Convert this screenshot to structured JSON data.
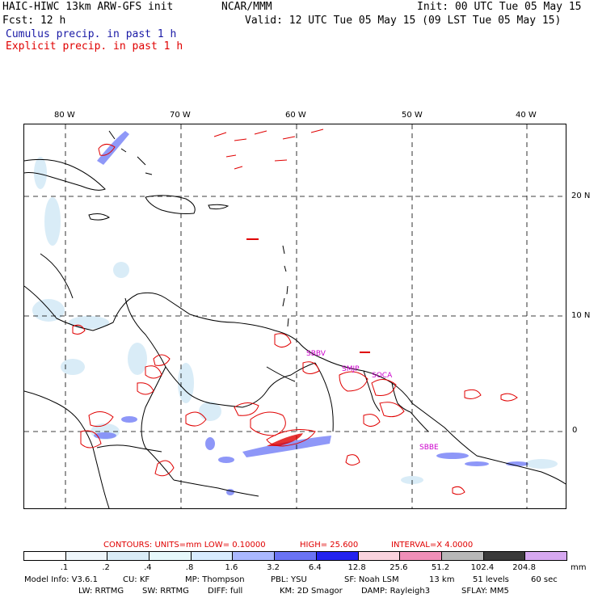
{
  "header": {
    "model": "HAIC-HIWC 13km ARW-GFS init",
    "org": "NCAR/MMM",
    "init": "Init: 00 UTC Tue 05 May 15",
    "fcst": "Fcst:   12 h",
    "valid": "Valid: 12 UTC Tue 05 May 15 (09 LST Tue 05 May 15)",
    "cumulus": "Cumulus precip. in past 1 h",
    "explicit": "Explicit precip. in past 1 h",
    "colors": {
      "cumulus": "#1a1aa6",
      "explicit": "#e00000"
    }
  },
  "map": {
    "lon_labels": [
      "80 W",
      "70 W",
      "60 W",
      "50 W",
      "40 W"
    ],
    "lat_labels": [
      "20 N",
      "10 N",
      "0"
    ],
    "stations": [
      "SBBV",
      "SMJP",
      "SOCA",
      "SBBE"
    ]
  },
  "contours": {
    "label": "CONTOURS:  UNITS=mm  LOW= 0.10000",
    "high": "HIGH=  25.600",
    "interval": "INTERVAL=X  4.0000"
  },
  "colorbar": {
    "labels": [
      ".1",
      ".2",
      ".4",
      ".8",
      "1.6",
      "3.2",
      "6.4",
      "12.8",
      "25.6",
      "51.2",
      "102.4",
      "204.8"
    ],
    "unit": "mm",
    "colors": [
      "#ffffff",
      "#eef6fb",
      "#d9ecf7",
      "#e6f8fb",
      "#d8ecff",
      "#aab8ff",
      "#6a73f5",
      "#2222ee",
      "#f9d3de",
      "#f08fb8",
      "#b8b8b8",
      "#3a3a3a",
      "#d6a8f0"
    ]
  },
  "footer": {
    "line1": [
      "Model Info: V3.6.1",
      "CU: KF",
      "MP: Thompson",
      "PBL: YSU",
      "SF: Noah LSM",
      "13 km",
      "51 levels",
      "60 sec"
    ],
    "line2": [
      "LW: RRTMG",
      "SW: RRTMG",
      "DIFF: full",
      "KM: 2D Smagor",
      "DAMP: Rayleigh3",
      "SFLAY: MM5"
    ]
  }
}
